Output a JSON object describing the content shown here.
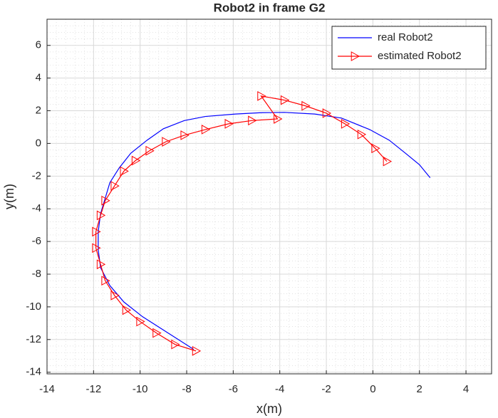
{
  "chart_data": {
    "type": "line",
    "title": "Robot2 in frame G2",
    "x_label": "x(m)",
    "y_label": "y(m)",
    "xlim": [
      -14,
      5.1
    ],
    "ylim": [
      -14.1,
      7.6
    ],
    "xticks": [
      -14,
      -12,
      -10,
      -8,
      -6,
      -4,
      -2,
      0,
      2,
      4
    ],
    "yticks": [
      -14,
      -12,
      -10,
      -8,
      -6,
      -4,
      -2,
      0,
      2,
      4,
      6
    ],
    "grid": true,
    "legend": "northeast",
    "series": [
      {
        "name": "real Robot2",
        "color": "#0000ff",
        "marker": "none",
        "x": [
          -7.7,
          -8.8,
          -9.9,
          -10.7,
          -11.3,
          -11.7,
          -11.8,
          -11.8,
          -11.7,
          -11.3,
          -10.9,
          -10.4,
          -9.7,
          -9.0,
          -8.1,
          -7.2,
          -5.9,
          -4.8,
          -3.8,
          -2.5,
          -1.35,
          -0.14,
          0.7,
          1.4,
          2.0,
          2.46
        ],
        "y": [
          -12.6,
          -11.6,
          -10.6,
          -9.7,
          -8.7,
          -7.6,
          -6.5,
          -5.4,
          -4.3,
          -2.4,
          -1.5,
          -0.6,
          0.2,
          0.9,
          1.4,
          1.65,
          1.8,
          1.88,
          1.9,
          1.8,
          1.55,
          0.85,
          0.2,
          -0.6,
          -1.3,
          -2.1
        ]
      },
      {
        "name": "estimated Robot2",
        "color": "#ff0000",
        "marker": "triangle-right",
        "x": [
          -7.6,
          -8.5,
          -9.3,
          -10.0,
          -10.6,
          -11.1,
          -11.5,
          -11.7,
          -11.9,
          -11.9,
          -11.7,
          -11.5,
          -11.1,
          -10.7,
          -10.2,
          -9.6,
          -8.9,
          -8.1,
          -7.2,
          -6.2,
          -5.2,
          -4.1,
          -4.8,
          -3.8,
          -2.9,
          -2.0,
          -1.2,
          -0.5,
          0.1,
          0.6
        ],
        "y": [
          -12.7,
          -12.3,
          -11.6,
          -10.9,
          -10.2,
          -9.3,
          -8.4,
          -7.4,
          -6.4,
          -5.4,
          -4.4,
          -3.5,
          -2.6,
          -1.7,
          -1.05,
          -0.45,
          0.1,
          0.5,
          0.85,
          1.2,
          1.4,
          1.5,
          2.9,
          2.65,
          2.3,
          1.85,
          1.2,
          0.55,
          -0.3,
          -1.1
        ]
      }
    ]
  }
}
